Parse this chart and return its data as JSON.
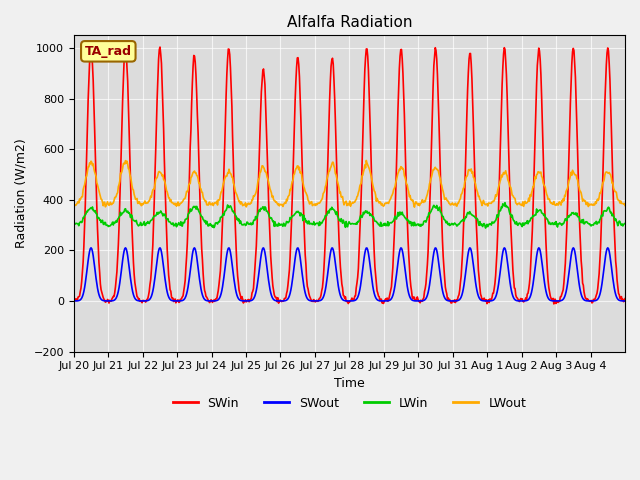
{
  "title": "Alfalfa Radiation",
  "ylabel": "Radiation (W/m2)",
  "xlabel": "Time",
  "ylim": [
    -200,
    1050
  ],
  "yticks": [
    -200,
    0,
    200,
    400,
    600,
    800,
    1000
  ],
  "plot_bg_color": "#dcdcdc",
  "fig_bg_color": "#f0f0f0",
  "lines": {
    "SWin": {
      "color": "#ff0000",
      "lw": 1.2
    },
    "SWout": {
      "color": "#0000ff",
      "lw": 1.2
    },
    "LWin": {
      "color": "#00cc00",
      "lw": 1.2
    },
    "LWout": {
      "color": "#ffaa00",
      "lw": 1.2
    }
  },
  "ta_rad_label": "TA_rad",
  "ta_rad_bg": "#ffff99",
  "ta_rad_fg": "#990000",
  "ta_rad_edge": "#996600",
  "xticklabels": [
    "Jul 20",
    "Jul 21",
    "Jul 22",
    "Jul 23",
    "Jul 24",
    "Jul 25",
    "Jul 26",
    "Jul 27",
    "Jul 28",
    "Jul 29",
    "Jul 30",
    "Jul 31",
    "Aug 1",
    "Aug 2",
    "Aug 3",
    "Aug 4"
  ],
  "n_days": 16,
  "pts_per_day": 48,
  "SWin_peaks": [
    1000,
    1000,
    1000,
    1000,
    1000,
    920,
    960,
    960,
    1000,
    1000,
    1000,
    980,
    1000,
    1000,
    1000,
    1000
  ],
  "LWout_amps": [
    170,
    170,
    130,
    130,
    130,
    150,
    150,
    160,
    160,
    150,
    150,
    140,
    130,
    130,
    130,
    130
  ]
}
